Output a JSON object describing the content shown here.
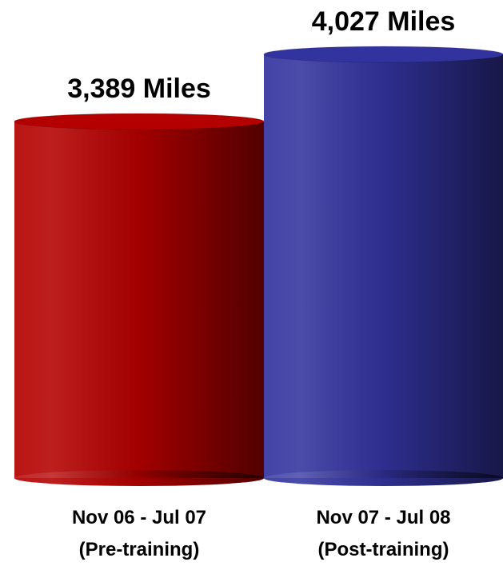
{
  "chart_data": {
    "type": "cylinder",
    "categories": [
      "Nov 06 - Jul 07\n(Pre-training)",
      "Nov 07 - Jul 08\n(Post-training)"
    ],
    "values": [
      3389,
      4027
    ],
    "value_labels": [
      "3,389 Miles",
      "4,027 Miles"
    ],
    "colors": [
      "#b40000",
      "#33339f"
    ]
  }
}
